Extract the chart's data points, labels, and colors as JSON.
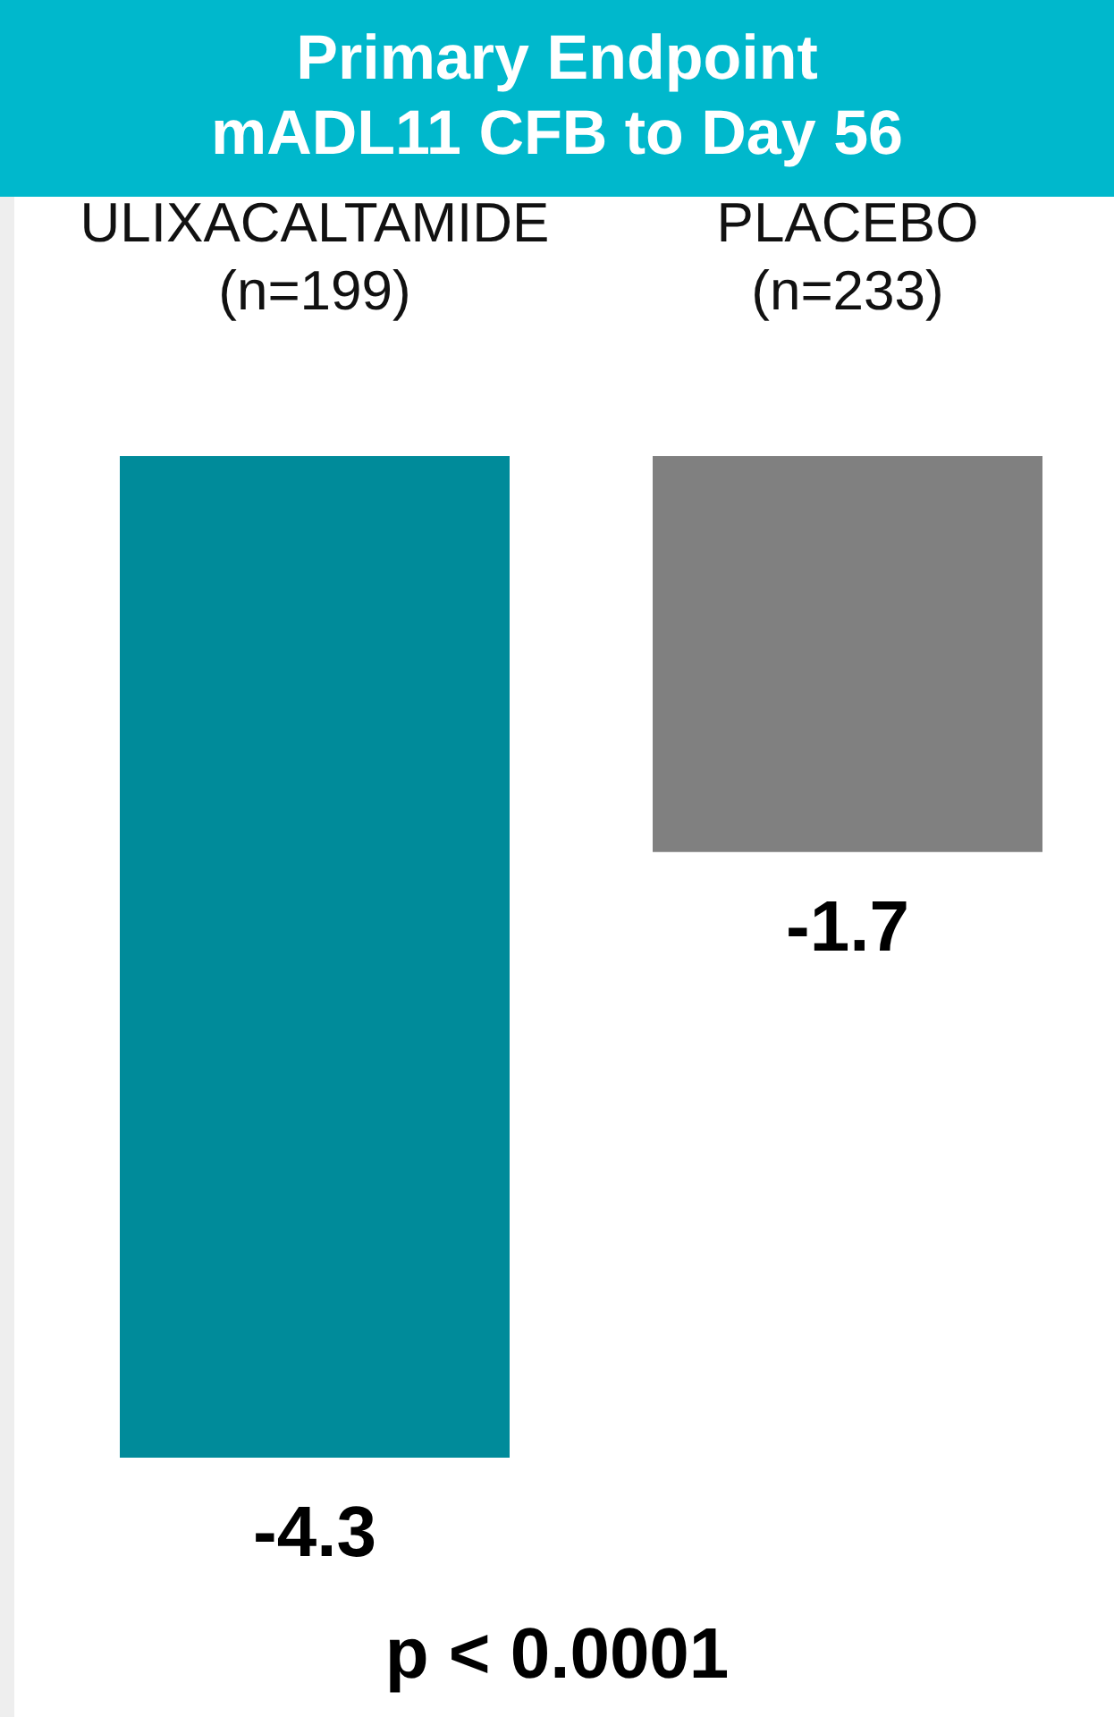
{
  "chart_data": {
    "type": "bar",
    "title": "Primary Endpoint\nmADL11 CFB to Day 56",
    "categories": [
      "ULIXACALTAMIDE\n(n=199)",
      "PLACEBO\n(n=233)"
    ],
    "values": [
      -4.3,
      -1.7
    ],
    "colors": [
      "#008b9a",
      "#808080"
    ],
    "data_labels": true,
    "annotations": [
      "p < 0.0001"
    ]
  }
}
